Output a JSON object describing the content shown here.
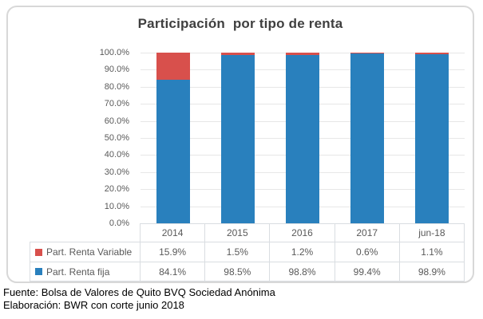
{
  "title": "Participación  por tipo de renta",
  "chart_data": {
    "type": "bar",
    "stacked": true,
    "title": "Participación por tipo de renta",
    "categories": [
      "2014",
      "2015",
      "2016",
      "2017",
      "jun-18"
    ],
    "series": [
      {
        "name": "Part. Renta fija",
        "values": [
          84.1,
          98.5,
          98.8,
          99.4,
          98.9
        ],
        "color": "#2980bd"
      },
      {
        "name": "Part. Renta Variable",
        "values": [
          15.9,
          1.5,
          1.2,
          0.6,
          1.1
        ],
        "color": "#d8504c"
      }
    ],
    "stack_order": "bottom-to-top",
    "xlabel": "",
    "ylabel": "",
    "ylim": [
      0,
      100
    ],
    "ytick_step": 10,
    "yticks": [
      "100.0%",
      "90.0%",
      "80.0%",
      "70.0%",
      "60.0%",
      "50.0%",
      "40.0%",
      "30.0%",
      "20.0%",
      "10.0%",
      "0.0%"
    ],
    "grid": true,
    "legend_position": "table-left"
  },
  "table": {
    "rows": [
      {
        "label": "Part. Renta Variable",
        "swatch_color": "#d8504c",
        "values": [
          "15.9%",
          "1.5%",
          "1.2%",
          "0.6%",
          "1.1%"
        ]
      },
      {
        "label": "Part. Renta fija",
        "swatch_color": "#2980bd",
        "values": [
          "84.1%",
          "98.5%",
          "98.8%",
          "99.4%",
          "98.9%"
        ]
      }
    ]
  },
  "source": {
    "line1": "Fuente: Bolsa de Valores de Quito BVQ Sociedad Anónima",
    "line2": "Elaboración: BWR con corte junio 2018"
  },
  "colors": {
    "renta_fija": "#2980bd",
    "renta_variable": "#d8504c",
    "title_text": "#3f3f3f",
    "axis_text": "#595959",
    "gridline": "#e7e7e7",
    "table_border": "#d9dde1",
    "box_border": "#d8d8d8"
  }
}
